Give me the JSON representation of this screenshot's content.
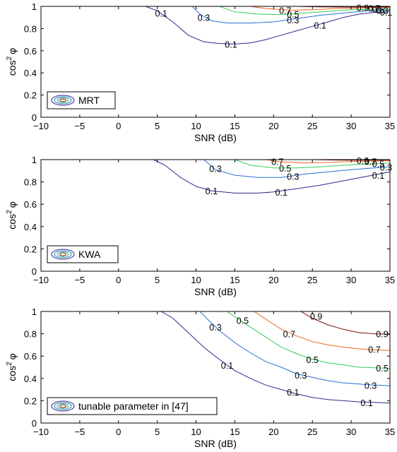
{
  "colors": {
    "level_0_1": "#2a2a8f",
    "level_0_3": "#2a6fd6",
    "level_0_5": "#33cc55",
    "level_0_7": "#ee6622",
    "level_0_9": "#7a1010",
    "axes": "#000000"
  },
  "chart_data": [
    {
      "type": "contour",
      "xlabel": "SNR (dB)",
      "ylabel_base": "cos",
      "ylabel_exp": "2",
      "ylabel_sym": "φ",
      "xlim": [
        -10,
        35
      ],
      "ylim": [
        0,
        1
      ],
      "xticks": [
        "-10",
        "-5",
        "0",
        "5",
        "10",
        "15",
        "20",
        "25",
        "30",
        "35"
      ],
      "yticks": [
        "0",
        "0.2",
        "0.4",
        "0.6",
        "0.8",
        "1"
      ],
      "legend": "MRT",
      "contours": [
        {
          "level": "0.1",
          "points": [
            [
              3.5,
              1.0
            ],
            [
              5,
              0.96
            ],
            [
              7,
              0.86
            ],
            [
              9,
              0.74
            ],
            [
              11,
              0.68
            ],
            [
              13,
              0.665
            ],
            [
              15,
              0.66
            ],
            [
              17,
              0.67
            ],
            [
              19,
              0.7
            ],
            [
              21,
              0.74
            ],
            [
              23,
              0.78
            ],
            [
              25,
              0.82
            ],
            [
              27,
              0.86
            ],
            [
              29,
              0.9
            ],
            [
              31,
              0.93
            ],
            [
              33,
              0.945
            ],
            [
              35,
              0.95
            ]
          ],
          "label_at": [
            [
              5.5,
              0.94
            ],
            [
              14.5,
              0.66
            ],
            [
              26,
              0.83
            ],
            [
              34.5,
              0.95
            ]
          ]
        },
        {
          "level": "0.3",
          "points": [
            [
              9.5,
              1.0
            ],
            [
              10.5,
              0.93
            ],
            [
              12,
              0.87
            ],
            [
              14,
              0.85
            ],
            [
              17,
              0.85
            ],
            [
              20,
              0.86
            ],
            [
              23,
              0.89
            ],
            [
              26,
              0.92
            ],
            [
              29,
              0.94
            ],
            [
              32,
              0.96
            ],
            [
              35,
              0.965
            ]
          ],
          "label_at": [
            [
              11,
              0.9
            ],
            [
              22.5,
              0.88
            ],
            [
              34,
              0.965
            ]
          ]
        },
        {
          "level": "0.5",
          "points": [
            [
              13,
              1.0
            ],
            [
              15,
              0.95
            ],
            [
              18,
              0.93
            ],
            [
              21,
              0.925
            ],
            [
              24,
              0.94
            ],
            [
              27,
              0.955
            ],
            [
              30,
              0.97
            ],
            [
              35,
              0.975
            ]
          ],
          "label_at": [
            [
              22.5,
              0.93
            ],
            [
              33.5,
              0.975
            ]
          ]
        },
        {
          "level": "0.7",
          "points": [
            [
              17,
              1.0
            ],
            [
              19,
              0.98
            ],
            [
              22,
              0.965
            ],
            [
              25,
              0.97
            ],
            [
              28,
              0.98
            ],
            [
              31,
              0.985
            ],
            [
              35,
              0.99
            ]
          ],
          "label_at": [
            [
              21.5,
              0.965
            ],
            [
              33,
              0.985
            ]
          ]
        },
        {
          "level": "0.9",
          "points": [
            [
              23,
              1.0
            ],
            [
              26,
              0.995
            ],
            [
              30,
              0.993
            ],
            [
              35,
              0.995
            ]
          ],
          "label_at": [
            [
              31.5,
              0.99
            ]
          ]
        }
      ]
    },
    {
      "type": "contour",
      "xlabel": "SNR (dB)",
      "ylabel_base": "cos",
      "ylabel_exp": "2",
      "ylabel_sym": "φ",
      "xlim": [
        -10,
        35
      ],
      "ylim": [
        0,
        1
      ],
      "xticks": [
        "-10",
        "-5",
        "0",
        "5",
        "10",
        "15",
        "20",
        "25",
        "30",
        "35"
      ],
      "yticks": [
        "0",
        "0.2",
        "0.4",
        "0.6",
        "0.8",
        "1"
      ],
      "legend": "KWA",
      "contours": [
        {
          "level": "0.1",
          "points": [
            [
              4.5,
              1.0
            ],
            [
              6,
              0.95
            ],
            [
              8,
              0.84
            ],
            [
              10,
              0.76
            ],
            [
              12,
              0.72
            ],
            [
              15,
              0.7
            ],
            [
              18,
              0.7
            ],
            [
              20,
              0.71
            ],
            [
              23,
              0.74
            ],
            [
              26,
              0.77
            ],
            [
              29,
              0.81
            ],
            [
              32,
              0.85
            ],
            [
              35,
              0.89
            ]
          ],
          "label_at": [
            [
              12,
              0.72
            ],
            [
              21,
              0.71
            ],
            [
              33.5,
              0.86
            ]
          ]
        },
        {
          "level": "0.3",
          "points": [
            [
              11,
              1.0
            ],
            [
              12.5,
              0.91
            ],
            [
              15,
              0.86
            ],
            [
              18,
              0.84
            ],
            [
              21,
              0.84
            ],
            [
              24,
              0.87
            ],
            [
              27,
              0.89
            ],
            [
              30,
              0.91
            ],
            [
              33,
              0.925
            ],
            [
              35,
              0.935
            ]
          ],
          "label_at": [
            [
              12.5,
              0.92
            ],
            [
              22.5,
              0.85
            ],
            [
              34.5,
              0.935
            ]
          ]
        },
        {
          "level": "0.5",
          "points": [
            [
              15,
              1.0
            ],
            [
              17,
              0.95
            ],
            [
              20,
              0.925
            ],
            [
              23,
              0.925
            ],
            [
              26,
              0.935
            ],
            [
              29,
              0.95
            ],
            [
              32,
              0.96
            ],
            [
              35,
              0.97
            ]
          ],
          "label_at": [
            [
              21.5,
              0.925
            ],
            [
              33.5,
              0.965
            ]
          ]
        },
        {
          "level": "0.7",
          "points": [
            [
              19,
              1.0
            ],
            [
              21,
              0.98
            ],
            [
              24,
              0.97
            ],
            [
              27,
              0.975
            ],
            [
              30,
              0.982
            ],
            [
              35,
              0.99
            ]
          ],
          "label_at": [
            [
              20.5,
              0.985
            ],
            [
              32.5,
              0.985
            ]
          ]
        },
        {
          "level": "0.9",
          "points": [
            [
              25,
              1.0
            ],
            [
              28,
              0.996
            ],
            [
              31,
              0.994
            ],
            [
              35,
              0.996
            ]
          ],
          "label_at": [
            [
              31.5,
              0.995
            ]
          ]
        }
      ]
    },
    {
      "type": "contour",
      "xlabel": "SNR (dB)",
      "ylabel_base": "cos",
      "ylabel_exp": "2",
      "ylabel_sym": "φ",
      "xlim": [
        -10,
        35
      ],
      "ylim": [
        0,
        1
      ],
      "xticks": [
        "-10",
        "-5",
        "0",
        "5",
        "10",
        "15",
        "20",
        "25",
        "30",
        "35"
      ],
      "yticks": [
        "0",
        "0.2",
        "0.4",
        "0.6",
        "0.8",
        "1"
      ],
      "legend": "tunable parameter in [47]",
      "contours": [
        {
          "level": "0.1",
          "points": [
            [
              5.5,
              1.0
            ],
            [
              7,
              0.94
            ],
            [
              9,
              0.81
            ],
            [
              11,
              0.68
            ],
            [
              13,
              0.57
            ],
            [
              15,
              0.47
            ],
            [
              17,
              0.4
            ],
            [
              19,
              0.34
            ],
            [
              21,
              0.3
            ],
            [
              23,
              0.26
            ],
            [
              25,
              0.23
            ],
            [
              27,
              0.21
            ],
            [
              29,
              0.2
            ],
            [
              31,
              0.19
            ],
            [
              33,
              0.185
            ],
            [
              35,
              0.18
            ]
          ],
          "label_at": [
            [
              14,
              0.52
            ],
            [
              22.5,
              0.28
            ],
            [
              32,
              0.185
            ]
          ]
        },
        {
          "level": "0.3",
          "points": [
            [
              10.5,
              1.0
            ],
            [
              11.5,
              0.93
            ],
            [
              13,
              0.83
            ],
            [
              15,
              0.72
            ],
            [
              17,
              0.63
            ],
            [
              19,
              0.55
            ],
            [
              21,
              0.5
            ],
            [
              23,
              0.44
            ],
            [
              25,
              0.41
            ],
            [
              27,
              0.38
            ],
            [
              29,
              0.36
            ],
            [
              31,
              0.35
            ],
            [
              33,
              0.34
            ],
            [
              35,
              0.335
            ]
          ],
          "label_at": [
            [
              12.5,
              0.86
            ],
            [
              23.5,
              0.43
            ],
            [
              32.5,
              0.34
            ]
          ]
        },
        {
          "level": "0.5",
          "points": [
            [
              14,
              1.0
            ],
            [
              15.5,
              0.93
            ],
            [
              17,
              0.86
            ],
            [
              19,
              0.77
            ],
            [
              21,
              0.68
            ],
            [
              23,
              0.62
            ],
            [
              25,
              0.57
            ],
            [
              27,
              0.54
            ],
            [
              29,
              0.52
            ],
            [
              31,
              0.5
            ],
            [
              33,
              0.495
            ],
            [
              35,
              0.49
            ]
          ],
          "label_at": [
            [
              16,
              0.92
            ],
            [
              25,
              0.57
            ],
            [
              34,
              0.495
            ]
          ]
        },
        {
          "level": "0.7",
          "points": [
            [
              17.5,
              1.0
            ],
            [
              19,
              0.93
            ],
            [
              21,
              0.84
            ],
            [
              23,
              0.78
            ],
            [
              25,
              0.73
            ],
            [
              27,
              0.7
            ],
            [
              29,
              0.68
            ],
            [
              31,
              0.665
            ],
            [
              33,
              0.655
            ],
            [
              35,
              0.65
            ]
          ],
          "label_at": [
            [
              22,
              0.8
            ],
            [
              33,
              0.66
            ]
          ]
        },
        {
          "level": "0.9",
          "points": [
            [
              23.5,
              1.0
            ],
            [
              25,
              0.94
            ],
            [
              27,
              0.88
            ],
            [
              29,
              0.84
            ],
            [
              31,
              0.81
            ],
            [
              33,
              0.8
            ],
            [
              35,
              0.795
            ]
          ],
          "label_at": [
            [
              25.5,
              0.96
            ],
            [
              34,
              0.8
            ]
          ]
        }
      ]
    }
  ]
}
